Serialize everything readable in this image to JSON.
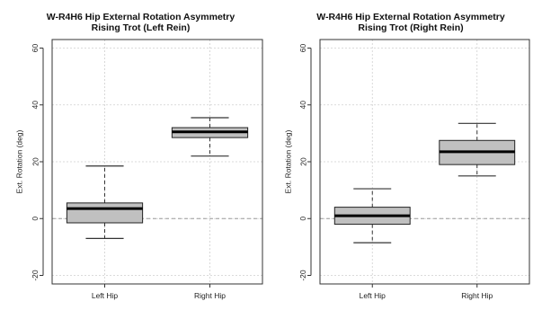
{
  "chart_data": [
    {
      "type": "box",
      "title": "W-R4H6 Hip External Rotation Asymmetry",
      "subtitle": "Rising Trot (Left Rein)",
      "xlabel": "",
      "ylabel": "Ext. Rotation (deg)",
      "ylim": [
        -23,
        63
      ],
      "yticks": [
        -20,
        0,
        20,
        40,
        60
      ],
      "categories": [
        "Left Hip",
        "Right Hip"
      ],
      "boxes": [
        {
          "label": "Left Hip",
          "whisker_low": -7,
          "q1": -1.5,
          "median": 3.5,
          "q3": 5.5,
          "whisker_high": 18.5
        },
        {
          "label": "Right Hip",
          "whisker_low": 22,
          "q1": 28.5,
          "median": 30.5,
          "q3": 32,
          "whisker_high": 35.5
        }
      ],
      "reference_line": 0,
      "grid": true,
      "box_color": "#c0c0c0"
    },
    {
      "type": "box",
      "title": "W-R4H6 Hip External Rotation Asymmetry",
      "subtitle": "Rising Trot (Right Rein)",
      "xlabel": "",
      "ylabel": "Ext. Rotation (deg)",
      "ylim": [
        -23,
        63
      ],
      "yticks": [
        -20,
        0,
        20,
        40,
        60
      ],
      "categories": [
        "Left Hip",
        "Right Hip"
      ],
      "boxes": [
        {
          "label": "Left Hip",
          "whisker_low": -8.5,
          "q1": -2,
          "median": 1,
          "q3": 4,
          "whisker_high": 10.5
        },
        {
          "label": "Right Hip",
          "whisker_low": 15,
          "q1": 19,
          "median": 23.5,
          "q3": 27.5,
          "whisker_high": 33.5
        }
      ],
      "reference_line": 0,
      "grid": true,
      "box_color": "#c0c0c0"
    }
  ]
}
